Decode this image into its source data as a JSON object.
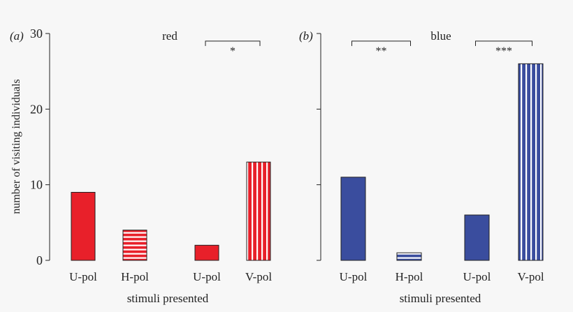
{
  "chart_data": [
    {
      "type": "bar",
      "panel_label": "(a)",
      "title": "red",
      "ylabel": "number of visiting individuals",
      "xlabel": "stimuli presented",
      "ylim": [
        0,
        30
      ],
      "yticks": [
        0,
        10,
        20,
        30
      ],
      "categories": [
        "U-pol",
        "H-pol",
        "U-pol",
        "V-pol"
      ],
      "values": [
        9,
        4,
        2,
        13
      ],
      "patterns": [
        "solid",
        "horizontal-stripes",
        "solid",
        "vertical-stripes"
      ],
      "color": "#e8202a",
      "significance": [
        {
          "from": 2,
          "to": 3,
          "label": "*",
          "level": 29
        }
      ]
    },
    {
      "type": "bar",
      "panel_label": "(b)",
      "title": "blue",
      "ylabel": "",
      "xlabel": "stimuli presented",
      "ylim": [
        0,
        30
      ],
      "yticks": [
        0,
        10,
        20,
        30
      ],
      "categories": [
        "U-pol",
        "H-pol",
        "U-pol",
        "V-pol"
      ],
      "values": [
        11,
        1,
        6,
        26
      ],
      "patterns": [
        "solid",
        "horizontal-stripes",
        "solid",
        "vertical-stripes"
      ],
      "color": "#3a4d9e",
      "significance": [
        {
          "from": 0,
          "to": 1,
          "label": "**",
          "level": 29
        },
        {
          "from": 2,
          "to": 3,
          "label": "***",
          "level": 29
        }
      ]
    }
  ]
}
